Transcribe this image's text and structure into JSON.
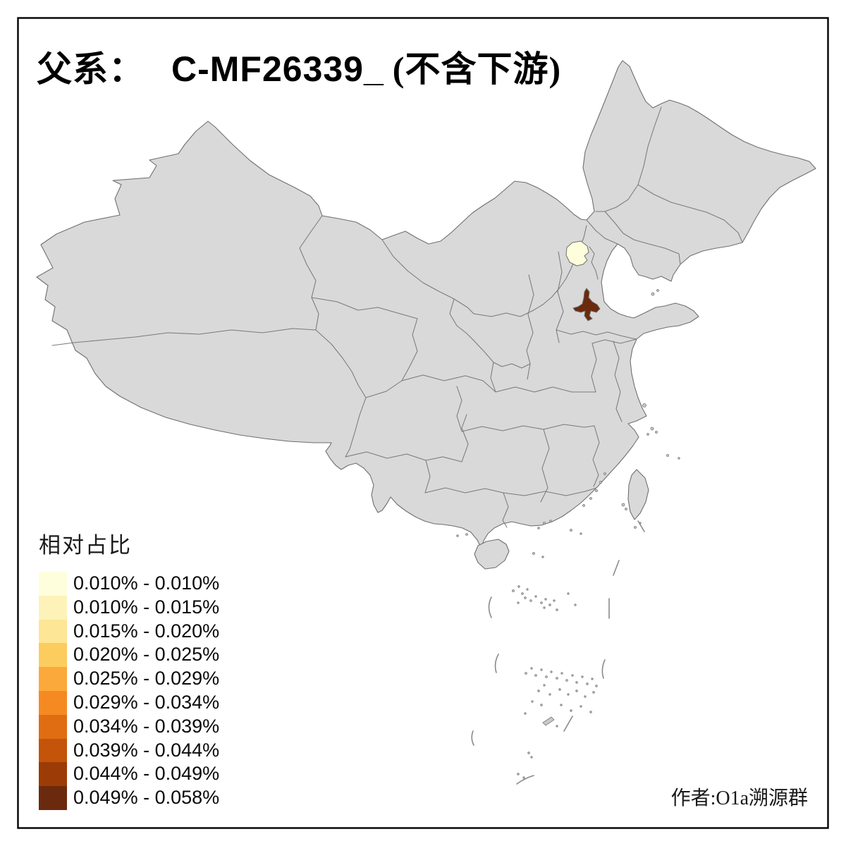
{
  "title": {
    "prefix": "父系：",
    "code": "C-MF26339_",
    "suffix": "(不含下游)"
  },
  "legend": {
    "title": "相对占比",
    "items": [
      {
        "label": "0.010% - 0.010%",
        "color": "#FFFEDC"
      },
      {
        "label": "0.010% - 0.015%",
        "color": "#FDF3B9"
      },
      {
        "label": "0.015% - 0.020%",
        "color": "#FEE697"
      },
      {
        "label": "0.020% - 0.025%",
        "color": "#FDCC5F"
      },
      {
        "label": "0.025% - 0.029%",
        "color": "#FCA93C"
      },
      {
        "label": "0.029% - 0.034%",
        "color": "#F58A22"
      },
      {
        "label": "0.034% - 0.039%",
        "color": "#E06D12"
      },
      {
        "label": "0.039% - 0.044%",
        "color": "#C35409"
      },
      {
        "label": "0.044% - 0.049%",
        "color": "#9C3B06"
      },
      {
        "label": "0.049% - 0.058%",
        "color": "#6B2A0D"
      }
    ]
  },
  "map": {
    "colors": {
      "land": "#D9D9D9",
      "border": "#6F6F6F",
      "sea": "#FFFFFF",
      "frame": "#000000"
    },
    "highlights": {
      "min_region": {
        "range": "0.010% - 0.010%",
        "color": "#FCFADC"
      },
      "max_region": {
        "range": "0.049% - 0.058%",
        "color": "#6B2A0D"
      }
    }
  },
  "attribution": "作者:O1a溯源群"
}
